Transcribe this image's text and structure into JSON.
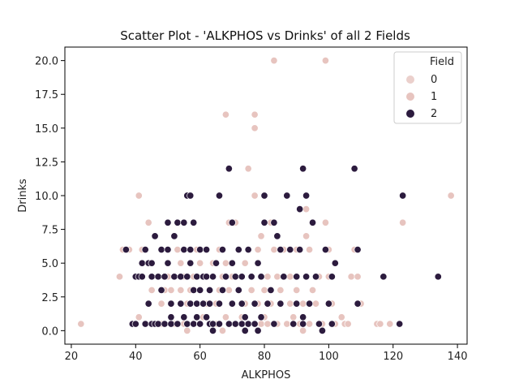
{
  "chart_data": {
    "type": "scatter",
    "title": "Scatter Plot - 'ALKPHOS vs Drinks' of all 2 Fields",
    "xlabel": "ALKPHOS",
    "ylabel": "Drinks",
    "xlim": [
      18,
      143
    ],
    "ylim": [
      -1,
      21
    ],
    "xticks": [
      20,
      40,
      60,
      80,
      100,
      120,
      140
    ],
    "yticks": [
      0.0,
      2.5,
      5.0,
      7.5,
      10.0,
      12.5,
      15.0,
      17.5,
      20.0
    ],
    "ytick_labels": [
      "0.0",
      "2.5",
      "5.0",
      "7.5",
      "10.0",
      "12.5",
      "15.0",
      "17.5",
      "20.0"
    ],
    "grid": false,
    "legend": {
      "title": "Field",
      "placement": "upper-right",
      "entries": [
        {
          "label": "0",
          "color": "#ebd0cc"
        },
        {
          "label": "1",
          "color": "#e7c4bf"
        },
        {
          "label": "2",
          "color": "#2c1b3e"
        }
      ]
    },
    "series": [
      {
        "name": "1",
        "color": "#e7c4bf",
        "points": [
          [
            23,
            0.5
          ],
          [
            35,
            4
          ],
          [
            36,
            6
          ],
          [
            38,
            6
          ],
          [
            40,
            0.5
          ],
          [
            41,
            1
          ],
          [
            41,
            10
          ],
          [
            42,
            6
          ],
          [
            42,
            4
          ],
          [
            44,
            8
          ],
          [
            45,
            3
          ],
          [
            46,
            0.5
          ],
          [
            47,
            4
          ],
          [
            48,
            2
          ],
          [
            48,
            0.5
          ],
          [
            49,
            3
          ],
          [
            50,
            4
          ],
          [
            50,
            6
          ],
          [
            51,
            2
          ],
          [
            51,
            3
          ],
          [
            52,
            0.5
          ],
          [
            53,
            6
          ],
          [
            54,
            3
          ],
          [
            54,
            5
          ],
          [
            55,
            0.5
          ],
          [
            55,
            4
          ],
          [
            56,
            0
          ],
          [
            56,
            2
          ],
          [
            57,
            5
          ],
          [
            57,
            3
          ],
          [
            58,
            4
          ],
          [
            58,
            0.5
          ],
          [
            59,
            2
          ],
          [
            59,
            6
          ],
          [
            60,
            3
          ],
          [
            60,
            5
          ],
          [
            61,
            1
          ],
          [
            61,
            4
          ],
          [
            62,
            2
          ],
          [
            62,
            6
          ],
          [
            63,
            3
          ],
          [
            63,
            0.5
          ],
          [
            64,
            5
          ],
          [
            64,
            4
          ],
          [
            65,
            2
          ],
          [
            65,
            0.5
          ],
          [
            66,
            3
          ],
          [
            66,
            6
          ],
          [
            67,
            4
          ],
          [
            67,
            0
          ],
          [
            68,
            16
          ],
          [
            68,
            1
          ],
          [
            68,
            5
          ],
          [
            69,
            3
          ],
          [
            69,
            8
          ],
          [
            70,
            2
          ],
          [
            70,
            4
          ],
          [
            71,
            8
          ],
          [
            71,
            0.5
          ],
          [
            72,
            6
          ],
          [
            72,
            3
          ],
          [
            73,
            4
          ],
          [
            73,
            1
          ],
          [
            74,
            2
          ],
          [
            74,
            5
          ],
          [
            75,
            12
          ],
          [
            75,
            0.5
          ],
          [
            76,
            4
          ],
          [
            76,
            3
          ],
          [
            77,
            16
          ],
          [
            77,
            15
          ],
          [
            77,
            10
          ],
          [
            78,
            2
          ],
          [
            78,
            6
          ],
          [
            79,
            0.5
          ],
          [
            79,
            7
          ],
          [
            80,
            1
          ],
          [
            80,
            3
          ],
          [
            81,
            4
          ],
          [
            81,
            0.5
          ],
          [
            82,
            2
          ],
          [
            82,
            8
          ],
          [
            83,
            20
          ],
          [
            83,
            6
          ],
          [
            84,
            0.5
          ],
          [
            84,
            4
          ],
          [
            85,
            2
          ],
          [
            85,
            3
          ],
          [
            86,
            6
          ],
          [
            87,
            0.5
          ],
          [
            88,
            4
          ],
          [
            88,
            2
          ],
          [
            89,
            1
          ],
          [
            90,
            3
          ],
          [
            90,
            6
          ],
          [
            91,
            0.5
          ],
          [
            92,
            2
          ],
          [
            92,
            0
          ],
          [
            93,
            9
          ],
          [
            93,
            7
          ],
          [
            93,
            4
          ],
          [
            94,
            6
          ],
          [
            94,
            0.5
          ],
          [
            95,
            3
          ],
          [
            96,
            2
          ],
          [
            97,
            4
          ],
          [
            98,
            0.5
          ],
          [
            99,
            20
          ],
          [
            99,
            8
          ],
          [
            100,
            4
          ],
          [
            100,
            6
          ],
          [
            101,
            2
          ],
          [
            102,
            0.5
          ],
          [
            104,
            1
          ],
          [
            105,
            0.5
          ],
          [
            106,
            0.5
          ],
          [
            107,
            4
          ],
          [
            108,
            6
          ],
          [
            109,
            4
          ],
          [
            110,
            2
          ],
          [
            115,
            0.5
          ],
          [
            116,
            0.5
          ],
          [
            119,
            0.5
          ],
          [
            123,
            8
          ],
          [
            138,
            10
          ]
        ]
      },
      {
        "name": "2",
        "color": "#2c1b3e",
        "points": [
          [
            37,
            6
          ],
          [
            39,
            0.5
          ],
          [
            40,
            0.5
          ],
          [
            40,
            4
          ],
          [
            41,
            4
          ],
          [
            42,
            5
          ],
          [
            42,
            4
          ],
          [
            43,
            0.5
          ],
          [
            43,
            6
          ],
          [
            44,
            2
          ],
          [
            44,
            5
          ],
          [
            45,
            5
          ],
          [
            45,
            4
          ],
          [
            45,
            0.5
          ],
          [
            46,
            0.5
          ],
          [
            46,
            7
          ],
          [
            47,
            0.5
          ],
          [
            47,
            4
          ],
          [
            48,
            3
          ],
          [
            48,
            6
          ],
          [
            49,
            4
          ],
          [
            49,
            0.5
          ],
          [
            50,
            8
          ],
          [
            50,
            5
          ],
          [
            50,
            6
          ],
          [
            51,
            0.5
          ],
          [
            51,
            1
          ],
          [
            51,
            2
          ],
          [
            52,
            4
          ],
          [
            52,
            7
          ],
          [
            53,
            8
          ],
          [
            53,
            0.5
          ],
          [
            54,
            4
          ],
          [
            54,
            2
          ],
          [
            55,
            6
          ],
          [
            55,
            8
          ],
          [
            55,
            1
          ],
          [
            56,
            10
          ],
          [
            56,
            0.5
          ],
          [
            56,
            4
          ],
          [
            57,
            5
          ],
          [
            57,
            10
          ],
          [
            57,
            2
          ],
          [
            57,
            6
          ],
          [
            58,
            3
          ],
          [
            58,
            0.5
          ],
          [
            58,
            8
          ],
          [
            59,
            4
          ],
          [
            59,
            2
          ],
          [
            59,
            1
          ],
          [
            60,
            6
          ],
          [
            60,
            3
          ],
          [
            60,
            0.5
          ],
          [
            61,
            4
          ],
          [
            61,
            2
          ],
          [
            62,
            1
          ],
          [
            62,
            4
          ],
          [
            62,
            6
          ],
          [
            63,
            2
          ],
          [
            63,
            0.5
          ],
          [
            63,
            3
          ],
          [
            64,
            0
          ],
          [
            64,
            0.5
          ],
          [
            64,
            4
          ],
          [
            65,
            5
          ],
          [
            66,
            10
          ],
          [
            66,
            2
          ],
          [
            66,
            0.5
          ],
          [
            67,
            6
          ],
          [
            67,
            3
          ],
          [
            68,
            4
          ],
          [
            69,
            12
          ],
          [
            69,
            0.5
          ],
          [
            70,
            5
          ],
          [
            70,
            2
          ],
          [
            70,
            8
          ],
          [
            71,
            4
          ],
          [
            71,
            0.5
          ],
          [
            72,
            3
          ],
          [
            72,
            6
          ],
          [
            73,
            0.5
          ],
          [
            73,
            4
          ],
          [
            73,
            2
          ],
          [
            74,
            0
          ],
          [
            74,
            1
          ],
          [
            75,
            0.5
          ],
          [
            75,
            6
          ],
          [
            76,
            4
          ],
          [
            77,
            2
          ],
          [
            77,
            0.5
          ],
          [
            78,
            0
          ],
          [
            78,
            5
          ],
          [
            79,
            1
          ],
          [
            79,
            4
          ],
          [
            80,
            8
          ],
          [
            80,
            10
          ],
          [
            81,
            2
          ],
          [
            82,
            3
          ],
          [
            83,
            8
          ],
          [
            83,
            0.5
          ],
          [
            84,
            7
          ],
          [
            85,
            6
          ],
          [
            85,
            2
          ],
          [
            86,
            4
          ],
          [
            87,
            10
          ],
          [
            88,
            6
          ],
          [
            89,
            0.5
          ],
          [
            90,
            4
          ],
          [
            90,
            2
          ],
          [
            91,
            9
          ],
          [
            91,
            6
          ],
          [
            92,
            1
          ],
          [
            92,
            12
          ],
          [
            92,
            0.5
          ],
          [
            93,
            10
          ],
          [
            93,
            4
          ],
          [
            94,
            2
          ],
          [
            95,
            8
          ],
          [
            96,
            4
          ],
          [
            97,
            0.5
          ],
          [
            98,
            0
          ],
          [
            99,
            6
          ],
          [
            100,
            2
          ],
          [
            101,
            4
          ],
          [
            101,
            0.5
          ],
          [
            102,
            5
          ],
          [
            108,
            12
          ],
          [
            109,
            6
          ],
          [
            109,
            2
          ],
          [
            117,
            4
          ],
          [
            122,
            0.5
          ],
          [
            123,
            10
          ],
          [
            134,
            4
          ]
        ]
      }
    ]
  }
}
